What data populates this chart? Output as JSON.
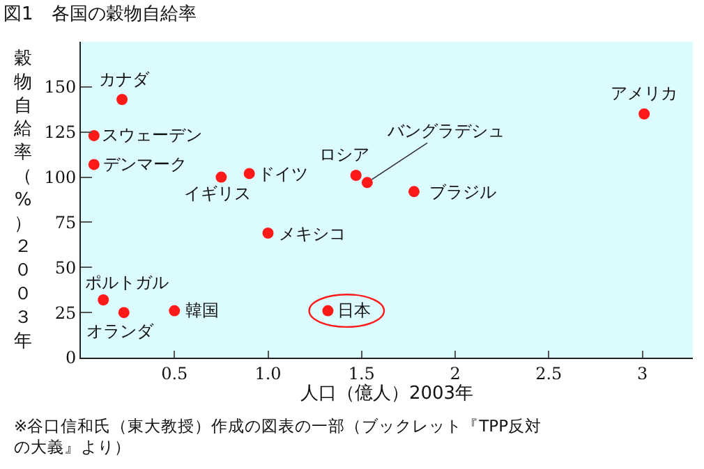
{
  "chart_data": {
    "type": "scatter",
    "title": "図1　各国の穀物自給率",
    "xlabel": "人口（億人）2003年",
    "ylabel": "穀物自給率（%）２００３年",
    "x": [
      0.22,
      0.07,
      0.07,
      0.75,
      0.9,
      1.0,
      0.12,
      0.23,
      0.5,
      1.32,
      1.47,
      1.53,
      1.78,
      3.01
    ],
    "values": [
      143,
      123,
      107,
      100,
      102,
      69,
      32,
      25,
      26,
      26,
      101,
      97,
      92,
      135
    ],
    "color": "#ff1a1a",
    "marker": "circle",
    "xlim": [
      0,
      3.27
    ],
    "ylim": [
      0,
      175
    ],
    "xticks": [
      0.5,
      {
        "value": 1.0,
        "label": "1.0"
      },
      1.5,
      2,
      2.5,
      3
    ],
    "yticks": [
      0,
      25,
      50,
      75,
      100,
      125,
      150
    ],
    "grid": false,
    "legend": false,
    "annotations": [
      {
        "text": "カナダ",
        "x": 0.22,
        "y": 143
      },
      {
        "text": "スウェーデン",
        "x": 0.07,
        "y": 123
      },
      {
        "text": "デンマーク",
        "x": 0.07,
        "y": 107
      },
      {
        "text": "イギリス",
        "x": 0.75,
        "y": 100
      },
      {
        "text": "ドイツ",
        "x": 0.9,
        "y": 102
      },
      {
        "text": "メキシコ",
        "x": 1.0,
        "y": 69
      },
      {
        "text": "ポルトガル",
        "x": 0.12,
        "y": 32
      },
      {
        "text": "オランダ",
        "x": 0.23,
        "y": 25
      },
      {
        "text": "韓国",
        "x": 0.5,
        "y": 26
      },
      {
        "text": "日本",
        "x": 1.32,
        "y": 26
      },
      {
        "text": "ロシア",
        "x": 1.47,
        "y": 101
      },
      {
        "text": "バングラデシュ",
        "x": 1.53,
        "y": 97
      },
      {
        "text": "ブラジル",
        "x": 1.78,
        "y": 92
      },
      {
        "text": "アメリカ",
        "x": 3.01,
        "y": 135
      },
      "※谷口信和氏（東大教授）作成の図表の一部（ブックレット『TPP反対の大義』より）"
    ]
  }
}
